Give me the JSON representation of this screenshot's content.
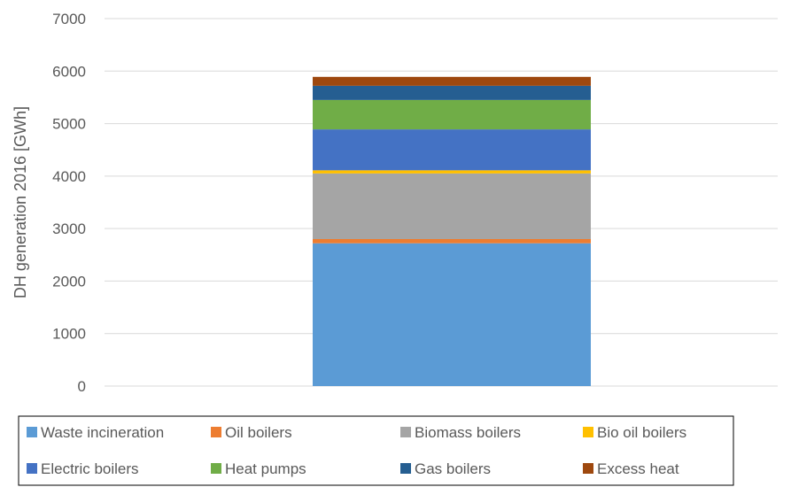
{
  "chart_data": {
    "type": "bar",
    "stacked": true,
    "title": "",
    "xlabel": "",
    "ylabel": "DH generation 2016  [GWh]",
    "ylim": [
      0,
      7000
    ],
    "yticks": [
      0,
      1000,
      2000,
      3000,
      4000,
      5000,
      6000,
      7000
    ],
    "grid": true,
    "legend_position": "bottom",
    "categories": [
      ""
    ],
    "series": [
      {
        "name": "Waste incineration",
        "color": "#5b9bd5",
        "values": [
          2720
        ]
      },
      {
        "name": "Oil boilers",
        "color": "#ed7d31",
        "values": [
          80
        ]
      },
      {
        "name": "Biomass boilers",
        "color": "#a5a5a5",
        "values": [
          1250
        ]
      },
      {
        "name": "Bio oil boilers",
        "color": "#ffc000",
        "values": [
          60
        ]
      },
      {
        "name": "Electric boilers",
        "color": "#4472c4",
        "values": [
          780
        ]
      },
      {
        "name": "Heat pumps",
        "color": "#70ad47",
        "values": [
          560
        ]
      },
      {
        "name": "Gas boilers",
        "color": "#255e91",
        "values": [
          270
        ]
      },
      {
        "name": "Excess heat",
        "color": "#9e480e",
        "values": [
          170
        ]
      }
    ]
  }
}
